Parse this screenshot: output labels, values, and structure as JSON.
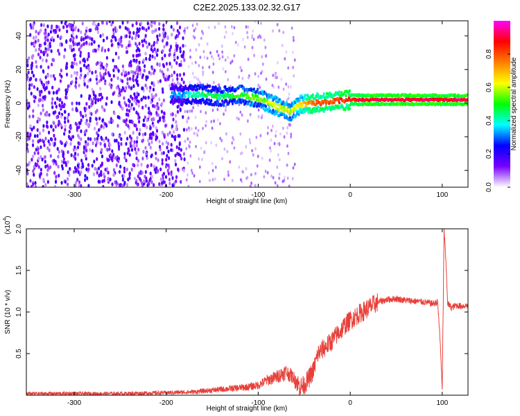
{
  "title": "C2E2.2025.133.02.32.G17",
  "chart_data": [
    {
      "type": "heatmap",
      "xlabel": "Height of straight line (km)",
      "ylabel": "Frequency (Hz)",
      "xlim": [
        -352,
        128
      ],
      "ylim": [
        -50,
        49
      ],
      "xticks": [
        -300,
        -200,
        -100,
        0,
        100
      ],
      "yticks": [
        -40,
        -20,
        0,
        20,
        40
      ],
      "colorbar": {
        "label": "Normalized spectral amplitude",
        "range": [
          0,
          1
        ],
        "ticks": [
          0.0,
          0.2,
          0.4,
          0.6,
          0.8
        ],
        "tick_labels": [
          "0.0",
          "0.2",
          "0.4",
          "0.6",
          "0.8"
        ],
        "colors": [
          "#ffffff",
          "#7700ff",
          "#0000ff",
          "#00ffff",
          "#00ff00",
          "#ffff00",
          "#ff7f00",
          "#ff0000",
          "#ff00ff"
        ]
      },
      "ridge": [
        {
          "x": -195,
          "freq": 5,
          "amp": 0.3
        },
        {
          "x": -180,
          "freq": 5,
          "amp": 0.35
        },
        {
          "x": -160,
          "freq": 5,
          "amp": 0.45
        },
        {
          "x": -140,
          "freq": 4,
          "amp": 0.45
        },
        {
          "x": -120,
          "freq": 5,
          "amp": 0.5
        },
        {
          "x": -100,
          "freq": 3,
          "amp": 0.55
        },
        {
          "x": -80,
          "freq": -2,
          "amp": 0.6
        },
        {
          "x": -65,
          "freq": -5,
          "amp": 0.6
        },
        {
          "x": -55,
          "freq": -1,
          "amp": 0.65
        },
        {
          "x": -40,
          "freq": 0,
          "amp": 0.8
        },
        {
          "x": -20,
          "freq": 1,
          "amp": 0.8
        },
        {
          "x": 0,
          "freq": 2,
          "amp": 0.85
        },
        {
          "x": 20,
          "freq": 2,
          "amp": 0.9
        },
        {
          "x": 60,
          "freq": 2,
          "amp": 0.9
        },
        {
          "x": 95,
          "freq": 2,
          "amp": 0.9
        },
        {
          "x": 128,
          "freq": 2,
          "amp": 0.9
        }
      ],
      "noise_region": {
        "from": -352,
        "to": -180,
        "freq_range": [
          -50,
          49
        ]
      }
    },
    {
      "type": "line",
      "xlabel": "Height of straight line (km)",
      "ylabel": "SNR (10 * v/v)",
      "multiplier_label": "(x10",
      "multiplier_exp": "4",
      "xlim": [
        -352,
        128
      ],
      "ylim": [
        0,
        2.0
      ],
      "xticks": [
        -300,
        -200,
        -100,
        0,
        100
      ],
      "yticks": [
        0.5,
        1.0,
        1.5,
        2.0
      ],
      "ytick_labels": [
        "0.5",
        "1.0",
        "1.5",
        "2.0"
      ],
      "color": "#e8403a",
      "series": [
        {
          "x": [
            -352,
            -300,
            -250,
            -200,
            -170,
            -150,
            -130,
            -110,
            -100,
            -90,
            -80,
            -70,
            -60,
            -55,
            -50,
            -45,
            -40,
            -35,
            -30,
            -25,
            -20,
            -15,
            -10,
            -5,
            0,
            10,
            20,
            30,
            40,
            50,
            60,
            70,
            80,
            90,
            95,
            98,
            100,
            102,
            104,
            106,
            110,
            115,
            120,
            128
          ],
          "y": [
            0.02,
            0.02,
            0.02,
            0.03,
            0.04,
            0.06,
            0.08,
            0.1,
            0.12,
            0.18,
            0.22,
            0.28,
            0.2,
            0.1,
            0.12,
            0.2,
            0.3,
            0.5,
            0.55,
            0.6,
            0.65,
            0.72,
            0.78,
            0.85,
            0.9,
            0.98,
            1.05,
            1.12,
            1.15,
            1.16,
            1.14,
            1.13,
            1.12,
            1.1,
            1.12,
            0.6,
            0.05,
            2.0,
            1.6,
            1.1,
            1.05,
            1.08,
            1.07,
            1.08
          ]
        }
      ]
    }
  ]
}
